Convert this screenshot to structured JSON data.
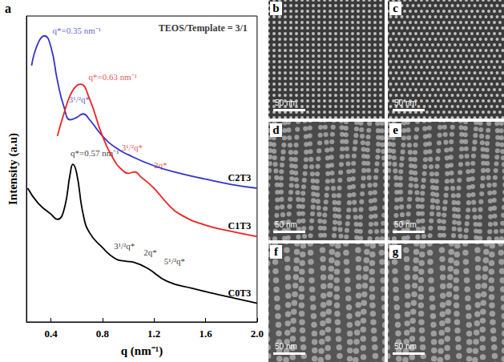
{
  "chart_data": {
    "type": "line",
    "panel": "a",
    "title": "TEOS/Template = 3/1",
    "x_label": "q (nm⁻¹)",
    "y_label": "Intensity (a.u)",
    "xlim": [
      0.21,
      2.0
    ],
    "xticks": [
      0.4,
      0.8,
      1.2,
      1.6,
      {
        "value": 2.0,
        "label": "2.0"
      }
    ],
    "ylim": [
      0,
      105
    ],
    "yticks": [],
    "tick_labels": "x",
    "grid": false,
    "series": [
      {
        "name": "C2T3",
        "color": "#3333cc",
        "x": [
          0.25,
          0.3,
          0.35,
          0.4,
          0.45,
          0.5,
          0.55,
          0.6,
          0.65,
          0.7,
          0.8,
          0.9,
          1.0,
          1.2,
          1.4,
          1.6,
          1.8,
          2.0
        ],
        "values": [
          88.0,
          95.7,
          98.2,
          94.4,
          82.9,
          74.0,
          69.4,
          70.2,
          71.4,
          69.4,
          63.8,
          59.9,
          57.4,
          53.6,
          51.0,
          49.0,
          47.2,
          45.9
        ]
      },
      {
        "name": "C1T3",
        "color": "#ee2222",
        "x": [
          0.45,
          0.5,
          0.55,
          0.6,
          0.63,
          0.7,
          0.8,
          0.9,
          0.95,
          1.0,
          1.05,
          1.1,
          1.2,
          1.3,
          1.4,
          1.6,
          1.8,
          2.0
        ],
        "values": [
          63.8,
          71.4,
          77.8,
          81.1,
          81.6,
          76.5,
          63.8,
          54.8,
          52.3,
          51.0,
          51.5,
          49.7,
          45.9,
          40.8,
          37.0,
          33.2,
          31.1,
          29.3
        ]
      },
      {
        "name": "C0T3",
        "color": "#000000",
        "x": [
          0.22,
          0.3,
          0.4,
          0.45,
          0.5,
          0.55,
          0.57,
          0.6,
          0.65,
          0.7,
          0.8,
          0.9,
          0.97,
          1.05,
          1.15,
          1.3,
          1.5,
          1.7,
          2.0
        ],
        "values": [
          45.9,
          40.8,
          37.0,
          35.2,
          38.3,
          51.0,
          54.1,
          51.0,
          37.0,
          30.6,
          25.5,
          21.7,
          20.9,
          20.4,
          18.4,
          14.0,
          11.5,
          9.4,
          6.4
        ]
      }
    ],
    "annotations": [
      {
        "text": "q*=0.35 nm⁻¹",
        "x": 0.6,
        "y": 100,
        "color": "#3333cc"
      },
      {
        "text": "3¹/²q*",
        "x": 0.62,
        "y": 76.5,
        "color": "#3333cc"
      },
      {
        "text": "q*=0.63 nm⁻¹",
        "x": 0.88,
        "y": 84,
        "color": "#ee2222"
      },
      {
        "text": "3¹/²q*",
        "x": 1.03,
        "y": 60,
        "color": "#ee2222"
      },
      {
        "text": "2q*",
        "x": 1.25,
        "y": 54,
        "color": "#ee2222"
      },
      {
        "text": "q*=0.57 nm⁻¹",
        "x": 0.74,
        "y": 58,
        "color": "#000000"
      },
      {
        "text": "3¹/²q*",
        "x": 0.97,
        "y": 26,
        "color": "#000000"
      },
      {
        "text": "2q*",
        "x": 1.17,
        "y": 24,
        "color": "#000000"
      },
      {
        "text": "5¹/²q*",
        "x": 1.36,
        "y": 21,
        "color": "#000000"
      }
    ]
  },
  "images": [
    {
      "label": "b",
      "scale_bar": "50 nm"
    },
    {
      "label": "c",
      "scale_bar": "50 nm"
    },
    {
      "label": "d",
      "scale_bar": "50 nm"
    },
    {
      "label": "e",
      "scale_bar": "50 nm"
    },
    {
      "label": "f",
      "scale_bar": "50 nm"
    },
    {
      "label": "g",
      "scale_bar": "50 nm"
    }
  ]
}
